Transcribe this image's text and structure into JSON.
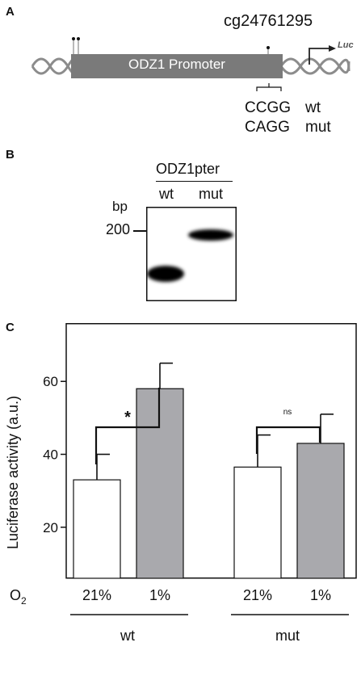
{
  "panel_a": {
    "label": "A",
    "cpg_id": "cg24761295",
    "promoter_label": "ODZ1 Promoter",
    "reporter_label": "Luc",
    "seq_wt": "CCGG",
    "seq_mut": "CAGG",
    "geno_wt": "wt",
    "geno_mut": "mut"
  },
  "panel_b": {
    "label": "B",
    "construct_label": "ODZ1pter",
    "lane_wt": "wt",
    "lane_mut": "mut",
    "unit_label": "bp",
    "marker_label": "200"
  },
  "panel_c": {
    "label": "C",
    "o2_label": "O",
    "o2_sub": "2",
    "group_wt": "wt",
    "group_mut": "mut",
    "sig_wt": "*",
    "sig_mut": "ns"
  },
  "chart_data": {
    "type": "bar",
    "ylabel": "Luciferase activity (a.u.)",
    "yticks": [
      20,
      40,
      60
    ],
    "ylim": [
      6,
      76
    ],
    "categories": [
      "21%",
      "1%",
      "21%",
      "1%"
    ],
    "groups": [
      "wt",
      "wt",
      "mut",
      "mut"
    ],
    "values": [
      33,
      58,
      36.5,
      43
    ],
    "errors": [
      7,
      7,
      8.8,
      8
    ],
    "colors": [
      "#ffffff",
      "#a9a9ad",
      "#ffffff",
      "#a9a9ad"
    ]
  }
}
